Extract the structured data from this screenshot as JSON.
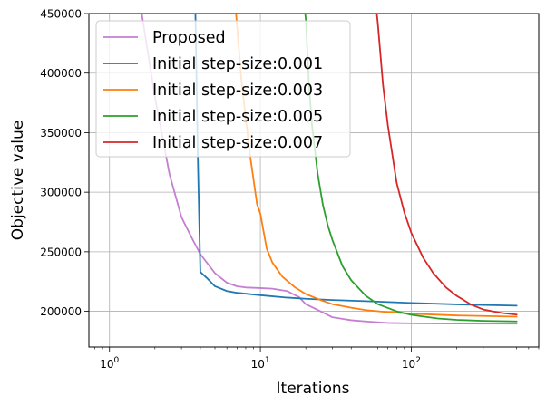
{
  "chart_data": {
    "type": "line",
    "title": "",
    "xlabel": "Iterations",
    "ylabel": "Objective value",
    "xscale": "log",
    "xlim": [
      0.73,
      700
    ],
    "ylim": [
      170000,
      450000
    ],
    "grid": true,
    "legend_position": "top-left",
    "x_ticks": [
      {
        "value": 1,
        "base": "10",
        "exp": "0"
      },
      {
        "value": 10,
        "base": "10",
        "exp": "1"
      },
      {
        "value": 100,
        "base": "10",
        "exp": "2"
      }
    ],
    "y_ticks": [
      200000,
      250000,
      300000,
      350000,
      400000,
      450000
    ],
    "series": [
      {
        "name": "Proposed",
        "color": "#c57ed1",
        "x": [
          1.5,
          2,
          2.5,
          3,
          3.5,
          4,
          5,
          6,
          7,
          8,
          10,
          12,
          15,
          18,
          20,
          25,
          30,
          40,
          50,
          70,
          100,
          200,
          500
        ],
        "y": [
          480000,
          380000,
          315000,
          279000,
          262000,
          248000,
          232000,
          224000,
          221000,
          220000,
          219500,
          219000,
          217000,
          212000,
          206000,
          200000,
          195000,
          192500,
          191500,
          190200,
          189900,
          189700,
          189600
        ]
      },
      {
        "name": "Initial step-size:0.001",
        "color": "#1f77b4",
        "x": [
          3.7,
          3.85,
          4,
          4.5,
          5,
          6,
          7,
          10,
          15,
          20,
          30,
          50,
          100,
          200,
          500
        ],
        "y": [
          460000,
          330000,
          233000,
          227000,
          221000,
          217000,
          215500,
          213500,
          211500,
          210500,
          209500,
          208500,
          207000,
          205800,
          204700
        ]
      },
      {
        "name": "Initial step-size:0.003",
        "color": "#ff7f0e",
        "x": [
          6.8,
          7.5,
          8.5,
          9.5,
          10,
          11,
          12,
          14,
          17,
          20,
          25,
          30,
          40,
          50,
          70,
          100,
          200,
          500
        ],
        "y": [
          460000,
          393000,
          333000,
          290000,
          282000,
          253000,
          241000,
          229000,
          220000,
          214500,
          209500,
          206000,
          203000,
          201000,
          199300,
          198000,
          196500,
          195500
        ]
      },
      {
        "name": "Initial step-size:0.005",
        "color": "#2ca02c",
        "x": [
          19.5,
          20,
          21,
          22,
          24,
          26,
          28,
          30,
          35,
          40,
          50,
          60,
          80,
          100,
          150,
          200,
          300,
          500
        ],
        "y": [
          460000,
          445000,
          390000,
          356000,
          315000,
          289000,
          272000,
          260000,
          238000,
          226000,
          213000,
          206000,
          200000,
          197000,
          194000,
          192800,
          192000,
          191500
        ]
      },
      {
        "name": "Initial step-size:0.007",
        "color": "#d62728",
        "x": [
          58,
          60,
          65,
          70,
          80,
          90,
          100,
          120,
          140,
          170,
          200,
          250,
          300,
          400,
          500
        ],
        "y": [
          460000,
          442000,
          390000,
          356000,
          308000,
          283000,
          266000,
          245000,
          232000,
          220000,
          213000,
          205500,
          201500,
          198500,
          197200
        ]
      }
    ]
  }
}
